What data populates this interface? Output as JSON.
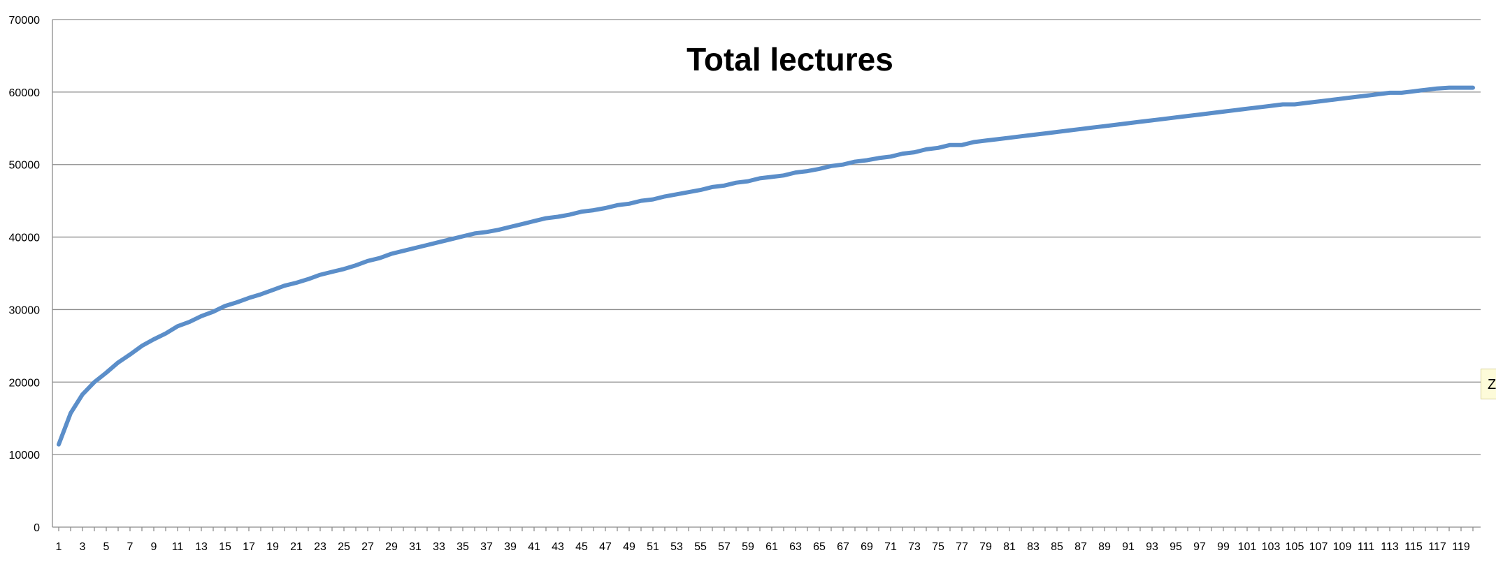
{
  "chart_data": {
    "type": "line",
    "title": "Total lectures",
    "xlabel": "",
    "ylabel": "",
    "ylim": [
      0,
      70000
    ],
    "yticks": [
      0,
      10000,
      20000,
      30000,
      40000,
      50000,
      60000,
      70000
    ],
    "xlim": [
      1,
      120
    ],
    "x_tick_labels": [
      1,
      3,
      5,
      7,
      9,
      11,
      13,
      15,
      17,
      19,
      21,
      23,
      25,
      27,
      29,
      31,
      33,
      35,
      37,
      39,
      41,
      43,
      45,
      47,
      49,
      51,
      53,
      55,
      57,
      59,
      61,
      63,
      65,
      67,
      69,
      71,
      73,
      75,
      77,
      79,
      81,
      83,
      85,
      87,
      89,
      91,
      93,
      95,
      97,
      99,
      101,
      103,
      105,
      107,
      109,
      111,
      113,
      115,
      117,
      119
    ],
    "grid": true,
    "legend": "none",
    "series_color": "#5b8ec9",
    "series": [
      {
        "values": [
          11400,
          15700,
          18300,
          20000,
          21300,
          22700,
          23800,
          25000,
          25900,
          26700,
          27700,
          28300,
          29100,
          29700,
          30500,
          31000,
          31600,
          32100,
          32700,
          33300,
          33700,
          34200,
          34800,
          35200,
          35600,
          36100,
          36700,
          37100,
          37700,
          38100,
          38500,
          38900,
          39300,
          39700,
          40100,
          40500,
          40700,
          41000,
          41400,
          41800,
          42200,
          42600,
          42800,
          43100,
          43500,
          43700,
          44000,
          44400,
          44600,
          45000,
          45200,
          45600,
          45900,
          46200,
          46500,
          46900,
          47100,
          47500,
          47700,
          48100,
          48300,
          48500,
          48900,
          49100,
          49400,
          49800,
          50000,
          50400,
          50600,
          50900,
          51100,
          51500,
          51700,
          52100,
          52300,
          52700,
          52700,
          53100,
          53300,
          53500,
          53700,
          53900,
          54100,
          54300,
          54500,
          54700,
          54900,
          55100,
          55300,
          55500,
          55700,
          55900,
          56100,
          56300,
          56500,
          56700,
          56900,
          57100,
          57300,
          57500,
          57700,
          57900,
          58100,
          58300,
          58300,
          58500,
          58700,
          58900,
          59100,
          59300,
          59500,
          59700,
          59900,
          59900,
          60100,
          60300,
          60500,
          60600,
          60600,
          60600
        ]
      }
    ]
  },
  "tooltip": {
    "text": "Z"
  }
}
